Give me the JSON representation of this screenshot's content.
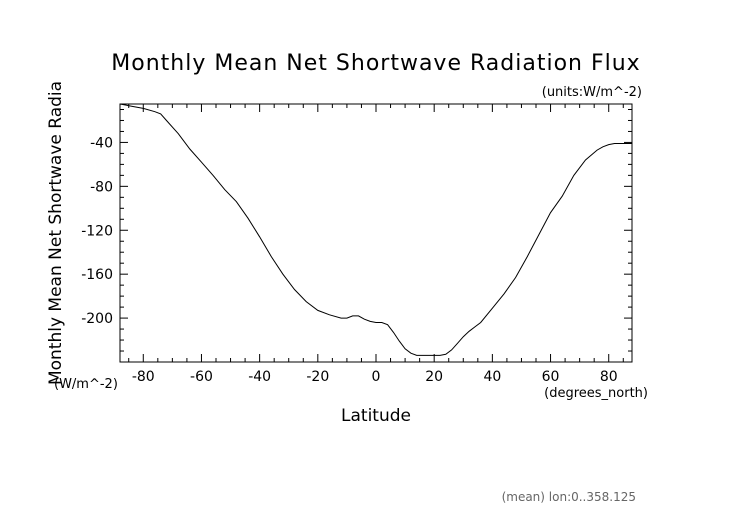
{
  "chart_data": {
    "type": "line",
    "title": "Monthly Mean Net Shortwave Radiation Flux",
    "units_label": "(units:W/m^-2)",
    "xlabel": "Latitude",
    "xunits": "(degrees_north)",
    "ylabel": "Monthly Mean Net Shortwave Radia",
    "yunits": "(W/m^-2)",
    "footer": "(mean) lon:0..358.125",
    "xlim": [
      -88,
      88
    ],
    "ylim": [
      -240,
      -5
    ],
    "xticks": [
      -80,
      -60,
      -40,
      -20,
      0,
      20,
      40,
      60,
      80
    ],
    "yticks": [
      -40,
      -80,
      -120,
      -160,
      -200
    ],
    "series": [
      {
        "x": [
          -88,
          -84,
          -80,
          -76,
          -74,
          -72,
          -68,
          -64,
          -60,
          -56,
          -52,
          -48,
          -44,
          -40,
          -36,
          -32,
          -28,
          -24,
          -20,
          -16,
          -12,
          -10,
          -8,
          -6,
          -4,
          -2,
          0,
          2,
          4,
          6,
          8,
          10,
          12,
          14,
          16,
          18,
          20,
          22,
          24,
          26,
          28,
          30,
          32,
          34,
          36,
          40,
          44,
          48,
          52,
          56,
          60,
          64,
          68,
          72,
          76,
          78,
          80,
          82,
          84,
          86,
          88
        ],
        "y": [
          -5,
          -7,
          -9,
          -12,
          -14,
          -20,
          -32,
          -46,
          -58,
          -70,
          -83,
          -94,
          -109,
          -126,
          -144,
          -160,
          -174,
          -185,
          -193,
          -197,
          -200,
          -200,
          -198,
          -198,
          -201,
          -203,
          -204,
          -204,
          -206,
          -213,
          -221,
          -228,
          -232,
          -234,
          -234,
          -234,
          -234,
          -234,
          -233,
          -229,
          -223,
          -217,
          -212,
          -208,
          -204,
          -191,
          -178,
          -163,
          -144,
          -124,
          -104,
          -89,
          -70,
          -56,
          -47,
          -44,
          -42,
          -41,
          -41,
          -41,
          -41
        ]
      }
    ]
  }
}
